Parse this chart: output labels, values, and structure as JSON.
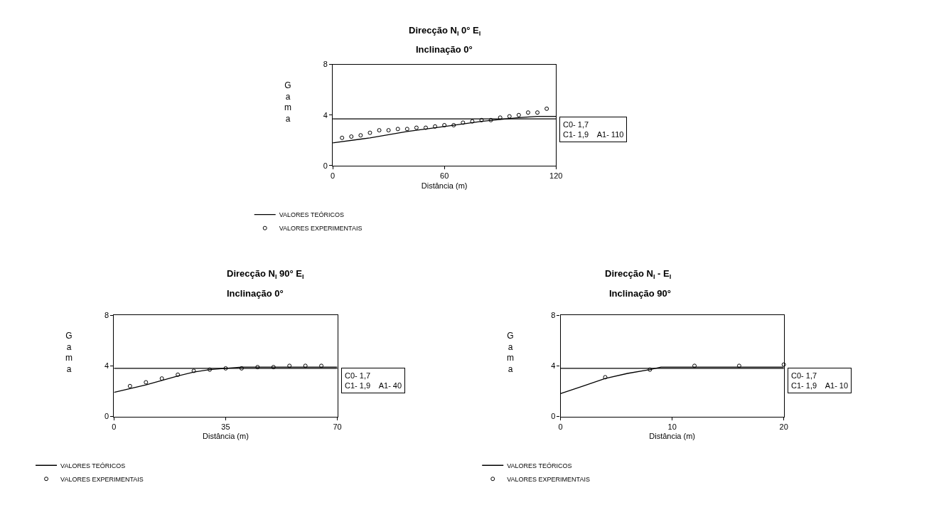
{
  "chart_data": [
    {
      "type": "line",
      "title": "Direcção N$_{I}$ 0° E$_{I}$",
      "subtitle": "Inclinação 0°",
      "xlabel": "Distância (m)",
      "ylabel": "Gama",
      "series": [
        {
          "name": "VALORES TEÓRICOS",
          "type": "line",
          "color": "#000000",
          "line_style": "solid",
          "marker": "none",
          "x": [
            0,
            20,
            40,
            60,
            80,
            100,
            110,
            120
          ],
          "values": [
            1.8,
            2.2,
            2.7,
            3.1,
            3.5,
            3.8,
            3.9,
            3.9
          ]
        },
        {
          "name": "VALORES EXPERIMENTAIS",
          "type": "scatter",
          "color": "#000000",
          "marker": "circle",
          "x": [
            5,
            10,
            15,
            20,
            25,
            30,
            35,
            40,
            45,
            50,
            55,
            60,
            65,
            70,
            75,
            80,
            85,
            90,
            95,
            100,
            105,
            110,
            115
          ],
          "values": [
            2.2,
            2.3,
            2.4,
            2.6,
            2.8,
            2.8,
            2.9,
            2.9,
            3.0,
            3.0,
            3.1,
            3.2,
            3.2,
            3.4,
            3.5,
            3.6,
            3.6,
            3.8,
            3.9,
            4.0,
            4.2,
            4.2,
            4.5
          ]
        }
      ],
      "ref_lines": [
        {
          "axis": "y",
          "value": 3.7,
          "color": "#000000"
        }
      ],
      "annotations": [
        "C0- 1,7",
        "C1- 1,9    A1- 110"
      ],
      "xlim": [
        0,
        120
      ],
      "xticks": [
        0,
        60,
        120
      ],
      "ylim": [
        0,
        8
      ],
      "yticks": [
        0,
        4,
        8
      ],
      "legend": "bottom left"
    },
    {
      "type": "line",
      "title": "Direcção N$_{I}$ 90° E$_{I}$",
      "subtitle": "Inclinação 0°",
      "xlabel": "Distância (m)",
      "ylabel": "Gama",
      "series": [
        {
          "name": "VALORES TEÓRICOS",
          "type": "line",
          "color": "#000000",
          "line_style": "solid",
          "marker": "none",
          "x": [
            0,
            10,
            20,
            25,
            30,
            35,
            40,
            70
          ],
          "values": [
            1.9,
            2.5,
            3.2,
            3.5,
            3.7,
            3.8,
            3.9,
            3.9
          ]
        },
        {
          "name": "VALORES EXPERIMENTAIS",
          "type": "scatter",
          "color": "#000000",
          "marker": "circle",
          "x": [
            5,
            10,
            15,
            20,
            25,
            30,
            35,
            40,
            45,
            50,
            55,
            60,
            65
          ],
          "values": [
            2.4,
            2.7,
            3.0,
            3.3,
            3.6,
            3.7,
            3.8,
            3.8,
            3.9,
            3.9,
            4.0,
            4.0,
            4.0
          ]
        }
      ],
      "ref_lines": [
        {
          "axis": "y",
          "value": 3.8,
          "color": "#000000"
        }
      ],
      "annotations": [
        "C0- 1,7",
        "C1- 1,9    A1- 40"
      ],
      "xlim": [
        0,
        70
      ],
      "xticks": [
        0,
        35,
        70
      ],
      "ylim": [
        0,
        8
      ],
      "yticks": [
        0,
        4,
        8
      ],
      "legend": "bottom left"
    },
    {
      "type": "line",
      "title": "Direcção N$_{I}$ - E$_{I}$",
      "subtitle": "Inclinação 90°",
      "xlabel": "Distância (m)",
      "ylabel": "Gama",
      "series": [
        {
          "name": "VALORES TEÓRICOS",
          "type": "line",
          "color": "#000000",
          "line_style": "solid",
          "marker": "none",
          "x": [
            0,
            2,
            4,
            6,
            8,
            9,
            20
          ],
          "values": [
            1.8,
            2.4,
            3.0,
            3.4,
            3.7,
            3.9,
            3.9
          ]
        },
        {
          "name": "VALORES EXPERIMENTAIS",
          "type": "scatter",
          "color": "#000000",
          "marker": "circle",
          "x": [
            4,
            8,
            12,
            16,
            20
          ],
          "values": [
            3.1,
            3.7,
            4.0,
            4.0,
            4.1
          ]
        }
      ],
      "ref_lines": [
        {
          "axis": "y",
          "value": 3.8,
          "color": "#000000"
        }
      ],
      "annotations": [
        "C0- 1,7",
        "C1- 1,9    A1- 10"
      ],
      "xlim": [
        0,
        20
      ],
      "xticks": [
        0,
        10,
        20
      ],
      "ylim": [
        0,
        8
      ],
      "yticks": [
        0,
        4,
        8
      ],
      "legend": "bottom left"
    }
  ]
}
